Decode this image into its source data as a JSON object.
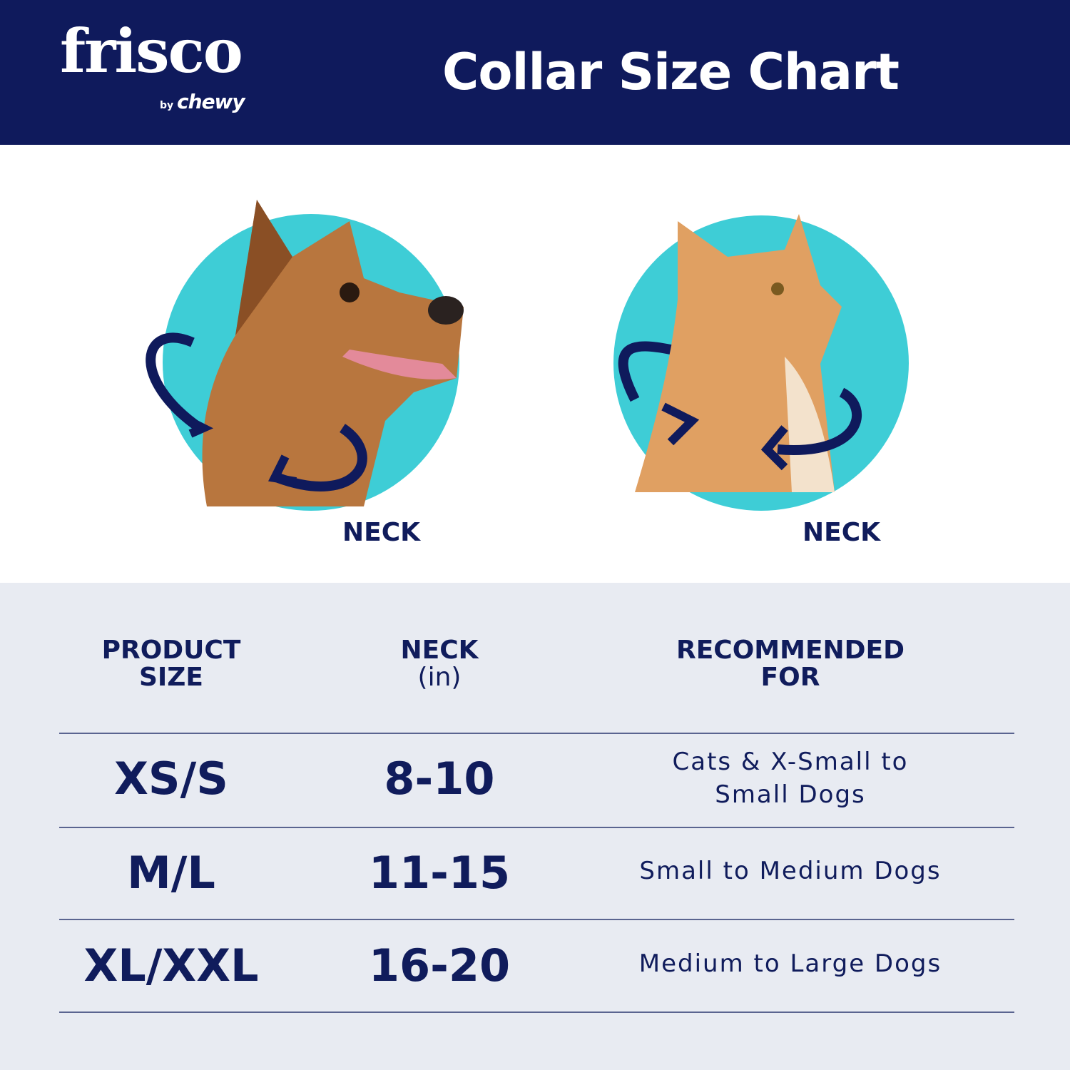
{
  "header": {
    "logo_text": "frisco",
    "logo_sub_by": "by",
    "logo_sub_brand": "chewy",
    "title": "Collar Size Chart"
  },
  "illustrations": [
    {
      "animal": "dog",
      "label": "NECK"
    },
    {
      "animal": "cat",
      "label": "NECK"
    }
  ],
  "colors": {
    "navy": "#0f1a5c",
    "teal": "#3ecdd6",
    "table_bg": "#e8ebf2"
  },
  "table": {
    "headers": [
      {
        "line1": "PRODUCT",
        "line2": "SIZE"
      },
      {
        "line1": "NECK",
        "line2": "(in)"
      },
      {
        "line1": "RECOMMENDED",
        "line2": "FOR"
      }
    ],
    "rows": [
      {
        "size": "XS/S",
        "neck": "8-10",
        "recommended_line1": "Cats & X-Small to",
        "recommended_line2": "Small Dogs"
      },
      {
        "size": "M/L",
        "neck": "11-15",
        "recommended_line1": "Small to Medium Dogs",
        "recommended_line2": ""
      },
      {
        "size": "XL/XXL",
        "neck": "16-20",
        "recommended_line1": "Medium to Large Dogs",
        "recommended_line2": ""
      }
    ]
  }
}
